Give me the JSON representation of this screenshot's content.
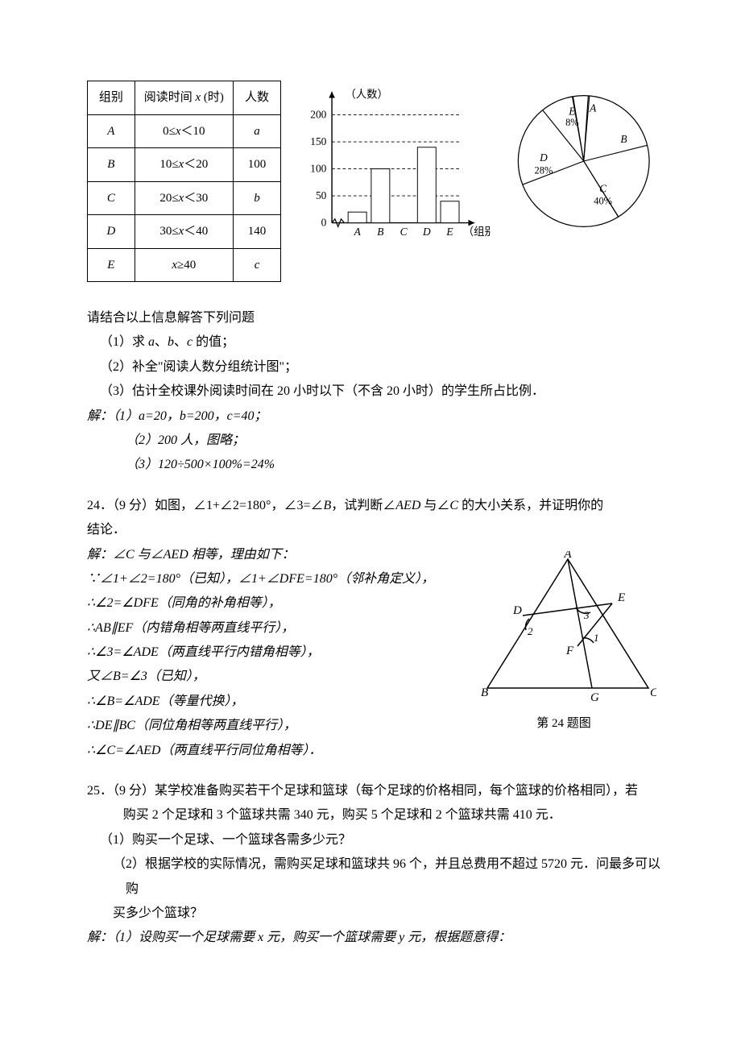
{
  "table": {
    "headers": [
      "组别",
      "阅读时间 x (时)",
      "人数"
    ],
    "rows": [
      {
        "group": "A",
        "range": "0≤x＜10",
        "count": "a"
      },
      {
        "group": "B",
        "range": "10≤x＜20",
        "count": "100"
      },
      {
        "group": "C",
        "range": "20≤x＜30",
        "count": "b"
      },
      {
        "group": "D",
        "range": "30≤x＜40",
        "count": "140"
      },
      {
        "group": "E",
        "range": "x≥40",
        "count": "c"
      }
    ]
  },
  "barchart": {
    "type": "bar",
    "ylabel": "（人数）",
    "xlabel": "（组别）",
    "ymax": 200,
    "ytick_step": 50,
    "yticks": [
      0,
      50,
      100,
      150,
      200
    ],
    "categories": [
      "A",
      "B",
      "C",
      "D",
      "E"
    ],
    "values": [
      20,
      100,
      null,
      140,
      40
    ],
    "bar_color": "#ffffff",
    "bar_border": "#000000",
    "axis_color": "#000000",
    "dash_color": "#000000",
    "dash_pattern": "4,3",
    "bar_width_ratio": 0.7
  },
  "piechart": {
    "type": "pie",
    "border_color": "#000000",
    "fill_color": "#ffffff",
    "slices": [
      {
        "label": "A",
        "start": 85,
        "sweep": 14.4
      },
      {
        "label": "B",
        "start": 14,
        "sweep": 72
      },
      {
        "label": "C\n40%",
        "start": 302,
        "sweep": 144
      },
      {
        "label": "D\n28%",
        "start": 201,
        "sweep": 100.8
      },
      {
        "label": "E\n8%",
        "start": 100,
        "sweep": 28.8
      }
    ],
    "labels": {
      "A": "A",
      "B": "B",
      "C1": "C",
      "C2": "40%",
      "D1": "D",
      "D2": "28%",
      "E1": "E",
      "E2": "8%"
    }
  },
  "q23": {
    "intro": "请结合以上信息解答下列问题",
    "p1": "（1）求 a、b、c 的值；",
    "p2": "（2）补全\"阅读人数分组统计图\"；",
    "p3": "（3）估计全校课外阅读时间在 20 小时以下（不含 20 小时）的学生所占比例．",
    "a_lead": "解：",
    "a1": "（1）a=20，b=200，c=40；",
    "a2": "（2）200 人，图略；",
    "a3": "（3）120÷500×100%=24%"
  },
  "q24": {
    "stem1": "24．（9 分）如图，∠1+∠2=180°，∠3=∠B，试判断∠AED 与∠C 的大小关系，并证明你的",
    "stem2": "结论．",
    "a_lead": "解：∠C 与∠AED 相等，理由如下：",
    "l1": "∵∠1+∠2=180°（已知），∠1+∠DFE=180°（邻补角定义），",
    "l2": "∴∠2=∠DFE（同角的补角相等），",
    "l3": "∴AB∥EF（内错角相等两直线平行），",
    "l4": "∴∠3=∠ADE（两直线平行内错角相等），",
    "l5": "又∠B=∠3（已知），",
    "l6": "∴∠B=∠ADE（等量代换），",
    "l7": "∴DE∥BC（同位角相等两直线平行），",
    "l8": "∴∠C=∠AED（两直线平行同位角相等）．",
    "fig_caption": "第 24 题图",
    "fig": {
      "type": "geometry",
      "line_color": "#000000",
      "labels": {
        "A": "A",
        "B": "B",
        "C": "C",
        "D": "D",
        "E": "E",
        "F": "F",
        "G": "G",
        "a1": "1",
        "a2": "2",
        "a3": "3"
      }
    }
  },
  "q25": {
    "stem1": "25．（9 分）某学校准备购买若干个足球和篮球（每个足球的价格相同，每个篮球的价格相同），若",
    "stem1b": "购买 2 个足球和 3 个篮球共需 340 元，购买 5 个足球和 2 个篮球共需 410 元．",
    "p1": "（1）购买一个足球、一个篮球各需多少元？",
    "p2a": "（2）根据学校的实际情况，需购买足球和篮球共 96 个，并且总费用不超过 5720 元．问最多可以购",
    "p2b": "买多少个篮球？",
    "a1": "解：（1）设购买一个足球需要 x 元，购买一个篮球需要 y 元，根据题意得："
  }
}
